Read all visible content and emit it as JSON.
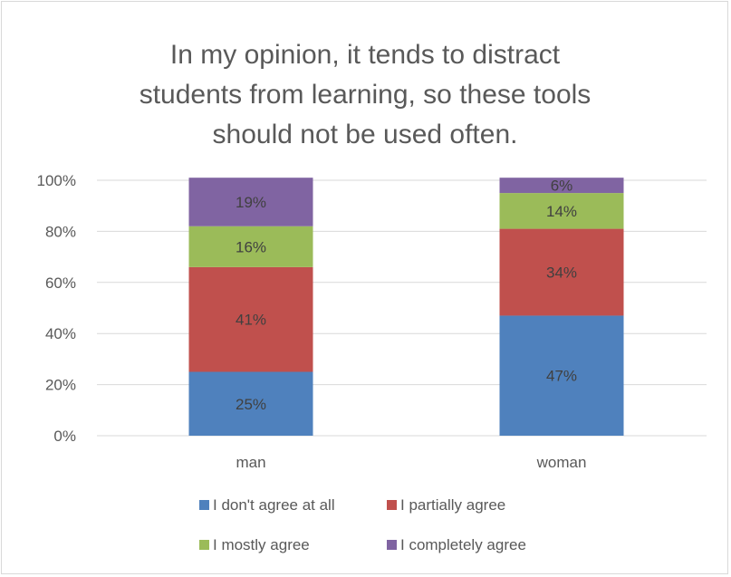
{
  "chart_data": {
    "type": "bar",
    "stacked": true,
    "title_lines": [
      "In my opinion, it tends to distract",
      "students from learning, so these tools",
      "should not be used often."
    ],
    "categories": [
      "man",
      "woman"
    ],
    "ylim": [
      0,
      100
    ],
    "y_ticks": [
      "0%",
      "20%",
      "40%",
      "60%",
      "80%",
      "100%"
    ],
    "grid": true,
    "legend_position": "bottom",
    "series": [
      {
        "name": "I don't agree at all",
        "color": "#4f81bd",
        "values": [
          25,
          47
        ],
        "labels": [
          "25%",
          "47%"
        ]
      },
      {
        "name": "I partially agree",
        "color": "#c0504d",
        "values": [
          41,
          34
        ],
        "labels": [
          "41%",
          "34%"
        ]
      },
      {
        "name": "I mostly agree",
        "color": "#9bbb59",
        "values": [
          16,
          14
        ],
        "labels": [
          "16%",
          "14%"
        ]
      },
      {
        "name": "I completely agree",
        "color": "#8064a2",
        "values": [
          19,
          6
        ],
        "labels": [
          "19%",
          "6%"
        ]
      }
    ]
  }
}
